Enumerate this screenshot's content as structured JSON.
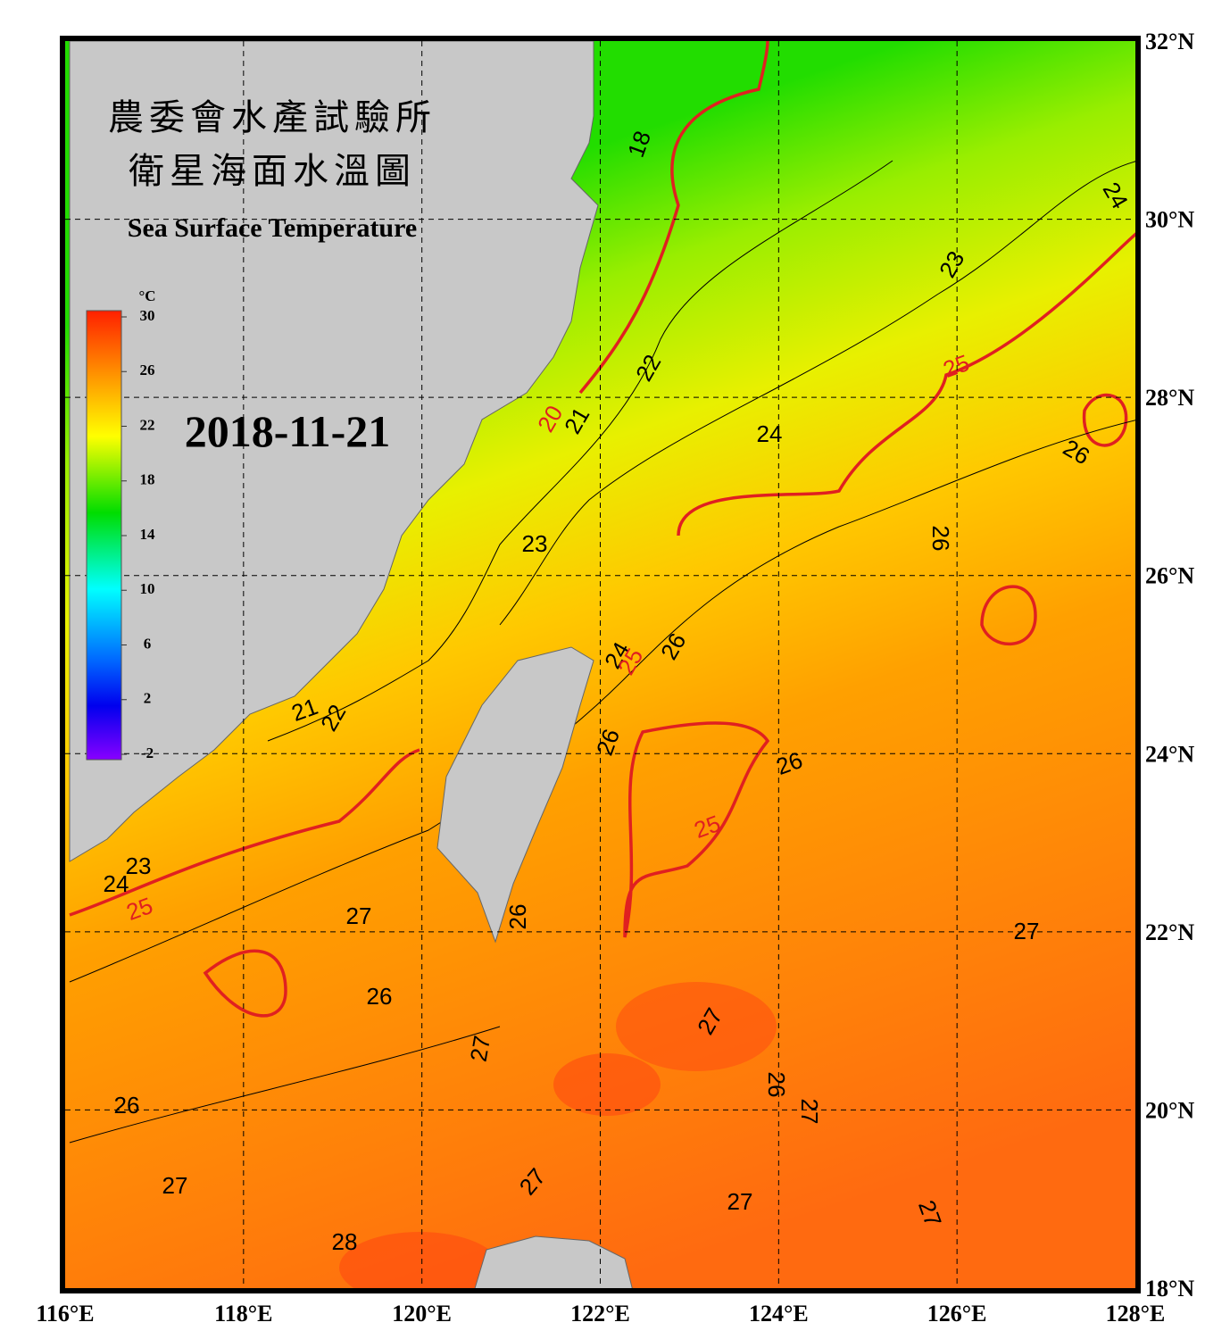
{
  "header": {
    "title_zh": "農委會水產試驗所",
    "subtitle_zh": "衛星海面水溫圖",
    "title_en": "Sea Surface Temperature",
    "date": "2018-11-21"
  },
  "map": {
    "xlim": [
      116,
      128
    ],
    "ylim": [
      18,
      32
    ],
    "grid": true,
    "xticks": [
      {
        "value": 116,
        "label": "116°E"
      },
      {
        "value": 118,
        "label": "118°E"
      },
      {
        "value": 120,
        "label": "120°E"
      },
      {
        "value": 122,
        "label": "122°E"
      },
      {
        "value": 124,
        "label": "124°E"
      },
      {
        "value": 126,
        "label": "126°E"
      },
      {
        "value": 128,
        "label": "128°E"
      }
    ],
    "yticks": [
      {
        "value": 18,
        "label": "18°N"
      },
      {
        "value": 20,
        "label": "20°N"
      },
      {
        "value": 22,
        "label": "22°N"
      },
      {
        "value": 24,
        "label": "24°N"
      },
      {
        "value": 26,
        "label": "26°N"
      },
      {
        "value": 28,
        "label": "28°N"
      },
      {
        "value": 30,
        "label": "30°N"
      },
      {
        "value": 32,
        "label": "32°N"
      }
    ]
  },
  "colorbar": {
    "unit": "°C",
    "lim": [
      -2,
      30
    ],
    "ticks": [
      30,
      26,
      22,
      18,
      14,
      10,
      6,
      2,
      -2
    ]
  },
  "contours": {
    "labels": [
      18,
      24,
      23,
      25,
      22,
      20,
      21,
      24,
      26,
      26,
      23,
      24,
      25,
      26,
      21,
      22,
      26,
      26,
      25,
      23,
      24,
      25,
      27,
      26,
      27,
      26,
      27,
      27,
      26,
      27,
      26,
      27,
      27,
      27,
      27,
      28
    ]
  }
}
